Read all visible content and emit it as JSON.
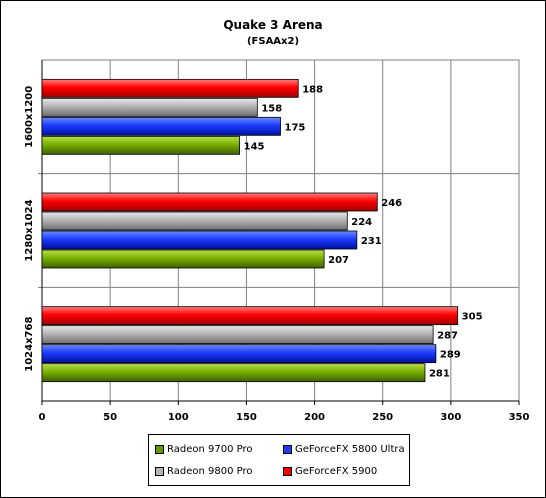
{
  "chart_data": {
    "type": "bar",
    "orientation": "horizontal",
    "title": "Quake 3 Arena",
    "subtitle": "(FSAAx2)",
    "categories": [
      "1600x1200",
      "1280x1024",
      "1024x768"
    ],
    "series": [
      {
        "name": "GeForceFX 5900",
        "color": "#ff0000",
        "values": [
          188,
          246,
          305
        ]
      },
      {
        "name": "Radeon 9800 Pro",
        "color": "#b4b4b4",
        "values": [
          158,
          224,
          287
        ]
      },
      {
        "name": "GeForceFX 5800 Ultra",
        "color": "#1e3cff",
        "values": [
          175,
          231,
          289
        ]
      },
      {
        "name": "Radeon 9700 Pro",
        "color": "#669900",
        "values": [
          145,
          207,
          281
        ]
      }
    ],
    "xlim": [
      0,
      350
    ],
    "xticks": [
      0,
      50,
      100,
      150,
      200,
      250,
      300,
      350
    ],
    "grid": true,
    "legend_position": "bottom"
  },
  "legend": {
    "items": [
      {
        "name": "Radeon 9700 Pro",
        "color": "#669900"
      },
      {
        "name": "GeForceFX 5800 Ultra",
        "color": "#1e3cff"
      },
      {
        "name": "Radeon 9800 Pro",
        "color": "#b4b4b4"
      },
      {
        "name": "GeForceFX 5900",
        "color": "#ff0000"
      }
    ]
  }
}
